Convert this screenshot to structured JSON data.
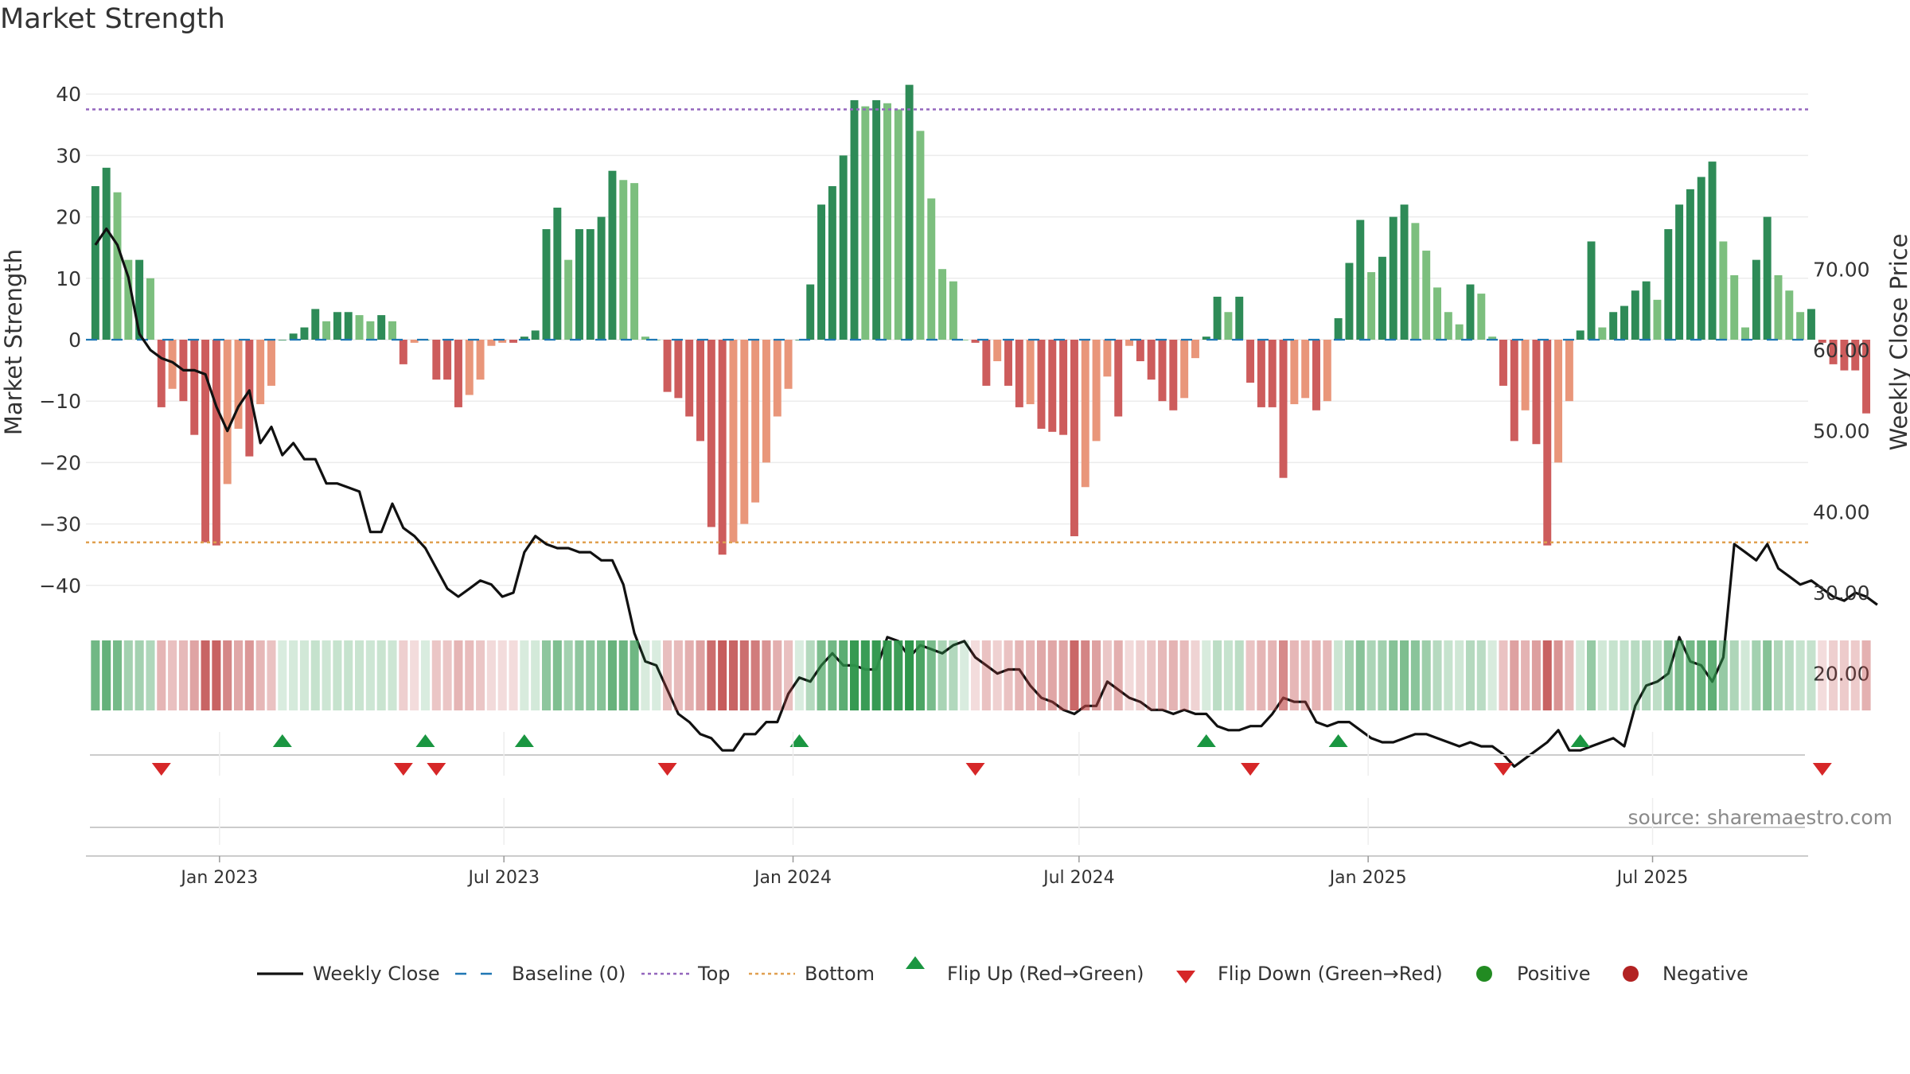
{
  "chart_data": {
    "type": "bar",
    "title": "Market Strength",
    "ylabel": "Market Strength",
    "y2label": "Weekly Close Price",
    "ylim": [
      -45,
      45
    ],
    "y2lim": [
      10,
      80
    ],
    "yticks": [
      40,
      30,
      20,
      10,
      0,
      -10,
      -20,
      -30,
      -40
    ],
    "ytick_labels": [
      "40",
      "30",
      "20",
      "10",
      "0",
      "−10",
      "−20",
      "−30",
      "−40"
    ],
    "y2ticks": [
      70,
      60,
      50,
      40,
      30,
      20
    ],
    "y2tick_labels": [
      "70.00",
      "60.00",
      "50.00",
      "40.00",
      "30.00",
      "20.00"
    ],
    "top_level": 37.5,
    "bottom_level": -33,
    "x_start": "2022-10-14",
    "x_end": "2025-10-03",
    "x_axis_range": [
      "2022-10-08",
      "2025-10-08"
    ],
    "xticks": [
      "2023-01-01",
      "2023-07-01",
      "2024-01-01",
      "2024-07-01",
      "2025-01-01",
      "2025-07-01"
    ],
    "xtick_labels": [
      "Jan 2023",
      "Jul 2023",
      "Jan 2024",
      "Jul 2024",
      "Jan 2025",
      "Jul 2025"
    ],
    "strength_values": [
      25,
      28,
      24,
      13,
      13,
      10,
      -11,
      -8,
      -10,
      -15.5,
      -33,
      -33.5,
      -23.5,
      -14.5,
      -19,
      -10.5,
      -7.5,
      0,
      1,
      2,
      5,
      3,
      4.5,
      4.5,
      4,
      3,
      4,
      3,
      -4,
      -0.5,
      0,
      -6.5,
      -6.5,
      -11,
      -9,
      -6.5,
      -1,
      -0.5,
      -0.5,
      0.5,
      1.5,
      18,
      21.5,
      13,
      18,
      18,
      20,
      27.5,
      26,
      25.5,
      0.5,
      0,
      -8.5,
      -9.5,
      -12.5,
      -16.5,
      -30.5,
      -35,
      -33,
      -30,
      -26.5,
      -20,
      -12.5,
      -8,
      0,
      9,
      22,
      25,
      30,
      39,
      38,
      39,
      38.5,
      37.5,
      41.5,
      34,
      23,
      11.5,
      9.5,
      0,
      -0.5,
      -7.5,
      -3.5,
      -7.5,
      -11,
      -10.5,
      -14.5,
      -15,
      -15.5,
      -32,
      -24,
      -16.5,
      -6,
      -12.5,
      -1,
      -3.5,
      -6.5,
      -10,
      -11.5,
      -9.5,
      -3,
      0.5,
      7,
      4.5,
      7,
      -7,
      -11,
      -11,
      -22.5,
      -10.5,
      -9.5,
      -11.5,
      -10,
      3.5,
      12.5,
      19.5,
      11,
      13.5,
      20,
      22,
      19,
      14.5,
      8.5,
      4.5,
      2.5,
      9,
      7.5,
      0.5,
      -7.5,
      -16.5,
      -11.5,
      -17,
      -33.5,
      -20,
      -10,
      1.5,
      16,
      2,
      4.5,
      5.5,
      8,
      9.5,
      6.5,
      18,
      22,
      24.5,
      26.5,
      29,
      16,
      10.5,
      2,
      13,
      20,
      10.5,
      8,
      4.5,
      5,
      -0.5,
      -4,
      -5,
      -5,
      -12
    ],
    "weekly_close": [
      73,
      75,
      73,
      69,
      62,
      60,
      59,
      58.5,
      57.5,
      57.5,
      57,
      53,
      50,
      53,
      55,
      48.5,
      50.5,
      47,
      48.5,
      46.5,
      46.5,
      43.5,
      43.5,
      43,
      42.5,
      37.5,
      37.5,
      41,
      38,
      37,
      35.5,
      33,
      30.5,
      29.5,
      30.5,
      31.5,
      31,
      29.5,
      30,
      35,
      37,
      36,
      35.5,
      35.5,
      35,
      35,
      34,
      34,
      31,
      25,
      21.5,
      21,
      18,
      15,
      14,
      12.5,
      12,
      10.5,
      10.5,
      12.5,
      12.5,
      14,
      14,
      17.5,
      19.5,
      19,
      21,
      22.5,
      21,
      21,
      20.5,
      20.5,
      24.5,
      24,
      22,
      23.5,
      23,
      22.5,
      23.5,
      24,
      22,
      21,
      20,
      20.5,
      20.5,
      18.5,
      17,
      16.5,
      15.5,
      15,
      16,
      16,
      19,
      18,
      17,
      16.5,
      15.5,
      15.5,
      15,
      15.5,
      15,
      15,
      13.5,
      13,
      13,
      13.5,
      13.5,
      15,
      17,
      16.5,
      16.5,
      14,
      13.5,
      14,
      14,
      13,
      12,
      11.5,
      11.5,
      12,
      12.5,
      12.5,
      12,
      11.5,
      11,
      11.5,
      11,
      11,
      10,
      8.5,
      9.5,
      10.5,
      11.5,
      13,
      10.5,
      10.5,
      11,
      11.5,
      12,
      11,
      16,
      18.5,
      19,
      20,
      24.5,
      21.5,
      21,
      19,
      22,
      36,
      35,
      34,
      36,
      33,
      32,
      31,
      31.5,
      30.5,
      29.5,
      29,
      30,
      29.5,
      28.5
    ]
  },
  "legend": {
    "weekly_close": "Weekly Close",
    "baseline": "Baseline (0)",
    "top": "Top",
    "bottom": "Bottom",
    "flip_up": "Flip Up (Red→Green)",
    "flip_down": "Flip Down (Green→Red)",
    "positive": "Positive",
    "negative": "Negative"
  },
  "source": "source: sharemaestro.com",
  "colors": {
    "pos_strong": "#2e8b57",
    "pos_weak": "#7cbf7e",
    "neg_strong": "#cd5c5c",
    "neg_weak": "#e9967a",
    "close_line": "#111111",
    "baseline": "#1f77b4",
    "top_line": "#9467bd",
    "bottom_line": "#e0a050",
    "flip_up": "#1a9641",
    "flip_down": "#d62728",
    "positive_dot": "#228b22",
    "negative_dot": "#b22222"
  }
}
